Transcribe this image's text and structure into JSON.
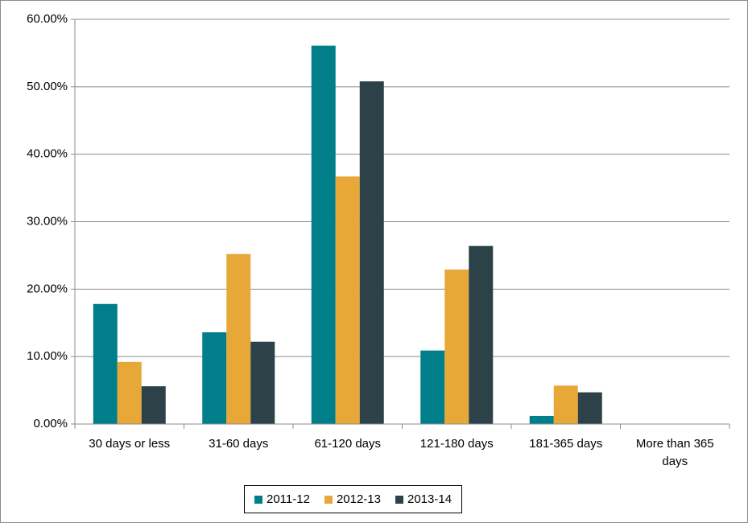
{
  "chart_data": {
    "type": "bar",
    "categories": [
      "30 days or less",
      "31-60 days",
      "61-120 days",
      "121-180 days",
      "181-365 days",
      "More than 365 days"
    ],
    "series": [
      {
        "name": "2011-12",
        "color": "#007f8b",
        "values": [
          17.8,
          13.6,
          56.1,
          10.9,
          1.2,
          0
        ]
      },
      {
        "name": "2012-13",
        "color": "#e8a838",
        "values": [
          9.2,
          25.2,
          36.7,
          22.9,
          5.7,
          0
        ]
      },
      {
        "name": "2013-14",
        "color": "#2c4248",
        "values": [
          5.6,
          12.2,
          50.8,
          26.4,
          4.7,
          0
        ]
      }
    ],
    "ylim": [
      0,
      60
    ],
    "yticks": [
      {
        "value": 0,
        "label": "0.00%"
      },
      {
        "value": 10,
        "label": "10.00%"
      },
      {
        "value": 20,
        "label": "20.00%"
      },
      {
        "value": 30,
        "label": "30.00%"
      },
      {
        "value": 40,
        "label": "40.00%"
      },
      {
        "value": 50,
        "label": "50.00%"
      },
      {
        "value": 60,
        "label": "60.00%"
      }
    ],
    "grid": true,
    "legend": "bottom"
  }
}
